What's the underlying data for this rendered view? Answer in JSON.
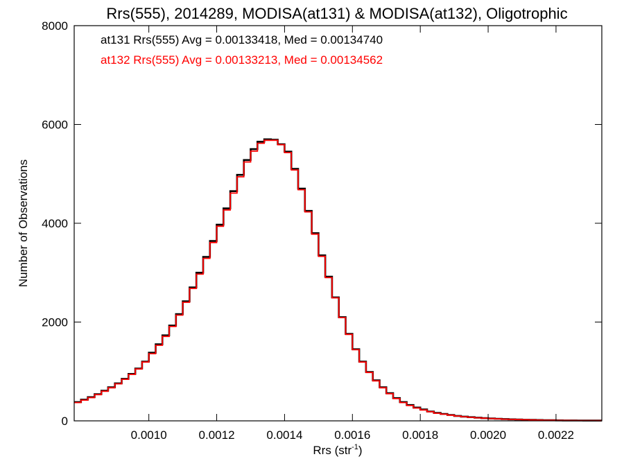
{
  "chart_data": {
    "type": "line",
    "step": true,
    "title": "Rrs(555), 2014289, MODISA(at131) & MODISA(at132), Oligotrophic",
    "xlabel_main": "Rrs (str",
    "xlabel_sup": "-1",
    "xlabel_end": ")",
    "ylabel": "Number of Observations",
    "xlim": [
      0.00078,
      0.002335
    ],
    "ylim": [
      0,
      8000
    ],
    "x_ticks": [
      0.001,
      0.0012,
      0.0014,
      0.0016,
      0.0018,
      0.002,
      0.0022
    ],
    "x_tick_labels": [
      "0.0010",
      "0.0012",
      "0.0014",
      "0.0016",
      "0.0018",
      "0.0020",
      "0.0022"
    ],
    "y_ticks": [
      0,
      2000,
      4000,
      6000,
      8000
    ],
    "y_tick_labels": [
      "0",
      "2000",
      "4000",
      "6000",
      "8000"
    ],
    "grid": false,
    "legend_placement": "top-left",
    "legend": [
      {
        "text": "at131 Rrs(555) Avg = 0.00133418, Med = 0.00134740",
        "color": "#000000"
      },
      {
        "text": "at132 Rrs(555) Avg = 0.00133213, Med = 0.00134562",
        "color": "#ff0000"
      }
    ],
    "series": [
      {
        "color": "#000000",
        "x": [
          0.00078,
          0.0008,
          0.00082,
          0.00084,
          0.00086,
          0.00088,
          0.0009,
          0.00092,
          0.00094,
          0.00096,
          0.00098,
          0.001,
          0.00102,
          0.00104,
          0.00106,
          0.00108,
          0.0011,
          0.00112,
          0.00114,
          0.00116,
          0.00118,
          0.0012,
          0.00122,
          0.00124,
          0.00126,
          0.00128,
          0.0013,
          0.00132,
          0.00134,
          0.00136,
          0.00138,
          0.0014,
          0.00142,
          0.00144,
          0.00146,
          0.00148,
          0.0015,
          0.00152,
          0.00154,
          0.00156,
          0.00158,
          0.0016,
          0.00162,
          0.00164,
          0.00166,
          0.00168,
          0.0017,
          0.00172,
          0.00174,
          0.00176,
          0.00178,
          0.0018,
          0.00182,
          0.00184,
          0.00186,
          0.00188,
          0.0019,
          0.00192,
          0.00194,
          0.00196,
          0.00198,
          0.002,
          0.00202,
          0.00204,
          0.00206,
          0.00208,
          0.0021,
          0.00212,
          0.00214,
          0.00216,
          0.00218,
          0.0022,
          0.00222,
          0.00224,
          0.00226,
          0.00228,
          0.0023,
          0.00232
        ],
        "y": [
          380,
          430,
          480,
          540,
          610,
          680,
          760,
          850,
          950,
          1060,
          1200,
          1380,
          1550,
          1730,
          1930,
          2160,
          2420,
          2700,
          3000,
          3320,
          3640,
          3970,
          4300,
          4650,
          4980,
          5280,
          5500,
          5650,
          5700,
          5690,
          5600,
          5450,
          5100,
          4700,
          4250,
          3800,
          3350,
          2920,
          2500,
          2100,
          1760,
          1450,
          1200,
          990,
          820,
          680,
          560,
          460,
          380,
          320,
          270,
          230,
          190,
          160,
          140,
          120,
          100,
          85,
          75,
          65,
          55,
          48,
          42,
          36,
          31,
          27,
          23,
          20,
          17,
          14,
          12,
          10,
          9,
          8,
          7,
          6,
          5,
          5
        ]
      },
      {
        "color": "#ff0000",
        "x": [
          0.00078,
          0.0008,
          0.00082,
          0.00084,
          0.00086,
          0.00088,
          0.0009,
          0.00092,
          0.00094,
          0.00096,
          0.00098,
          0.001,
          0.00102,
          0.00104,
          0.00106,
          0.00108,
          0.0011,
          0.00112,
          0.00114,
          0.00116,
          0.00118,
          0.0012,
          0.00122,
          0.00124,
          0.00126,
          0.00128,
          0.0013,
          0.00132,
          0.00134,
          0.00136,
          0.00138,
          0.0014,
          0.00142,
          0.00144,
          0.00146,
          0.00148,
          0.0015,
          0.00152,
          0.00154,
          0.00156,
          0.00158,
          0.0016,
          0.00162,
          0.00164,
          0.00166,
          0.00168,
          0.0017,
          0.00172,
          0.00174,
          0.00176,
          0.00178,
          0.0018,
          0.00182,
          0.00184,
          0.00186,
          0.00188,
          0.0019,
          0.00192,
          0.00194,
          0.00196,
          0.00198,
          0.002,
          0.00202,
          0.00204,
          0.00206,
          0.00208,
          0.0021,
          0.00212,
          0.00214,
          0.00216,
          0.00218,
          0.0022,
          0.00222,
          0.00224,
          0.00226,
          0.00228,
          0.0023,
          0.00232
        ],
        "y": [
          370,
          420,
          470,
          530,
          600,
          670,
          750,
          840,
          940,
          1050,
          1190,
          1360,
          1530,
          1710,
          1910,
          2140,
          2400,
          2680,
          2970,
          3290,
          3610,
          3940,
          4270,
          4610,
          4940,
          5240,
          5460,
          5620,
          5680,
          5680,
          5590,
          5430,
          5080,
          4680,
          4230,
          3780,
          3330,
          2900,
          2490,
          2090,
          1750,
          1440,
          1190,
          980,
          810,
          670,
          550,
          450,
          370,
          310,
          260,
          220,
          185,
          155,
          135,
          115,
          97,
          83,
          72,
          62,
          53,
          46,
          40,
          34,
          30,
          26,
          22,
          19,
          16,
          13,
          11,
          9,
          8,
          7,
          6,
          5,
          5,
          4
        ]
      }
    ]
  }
}
